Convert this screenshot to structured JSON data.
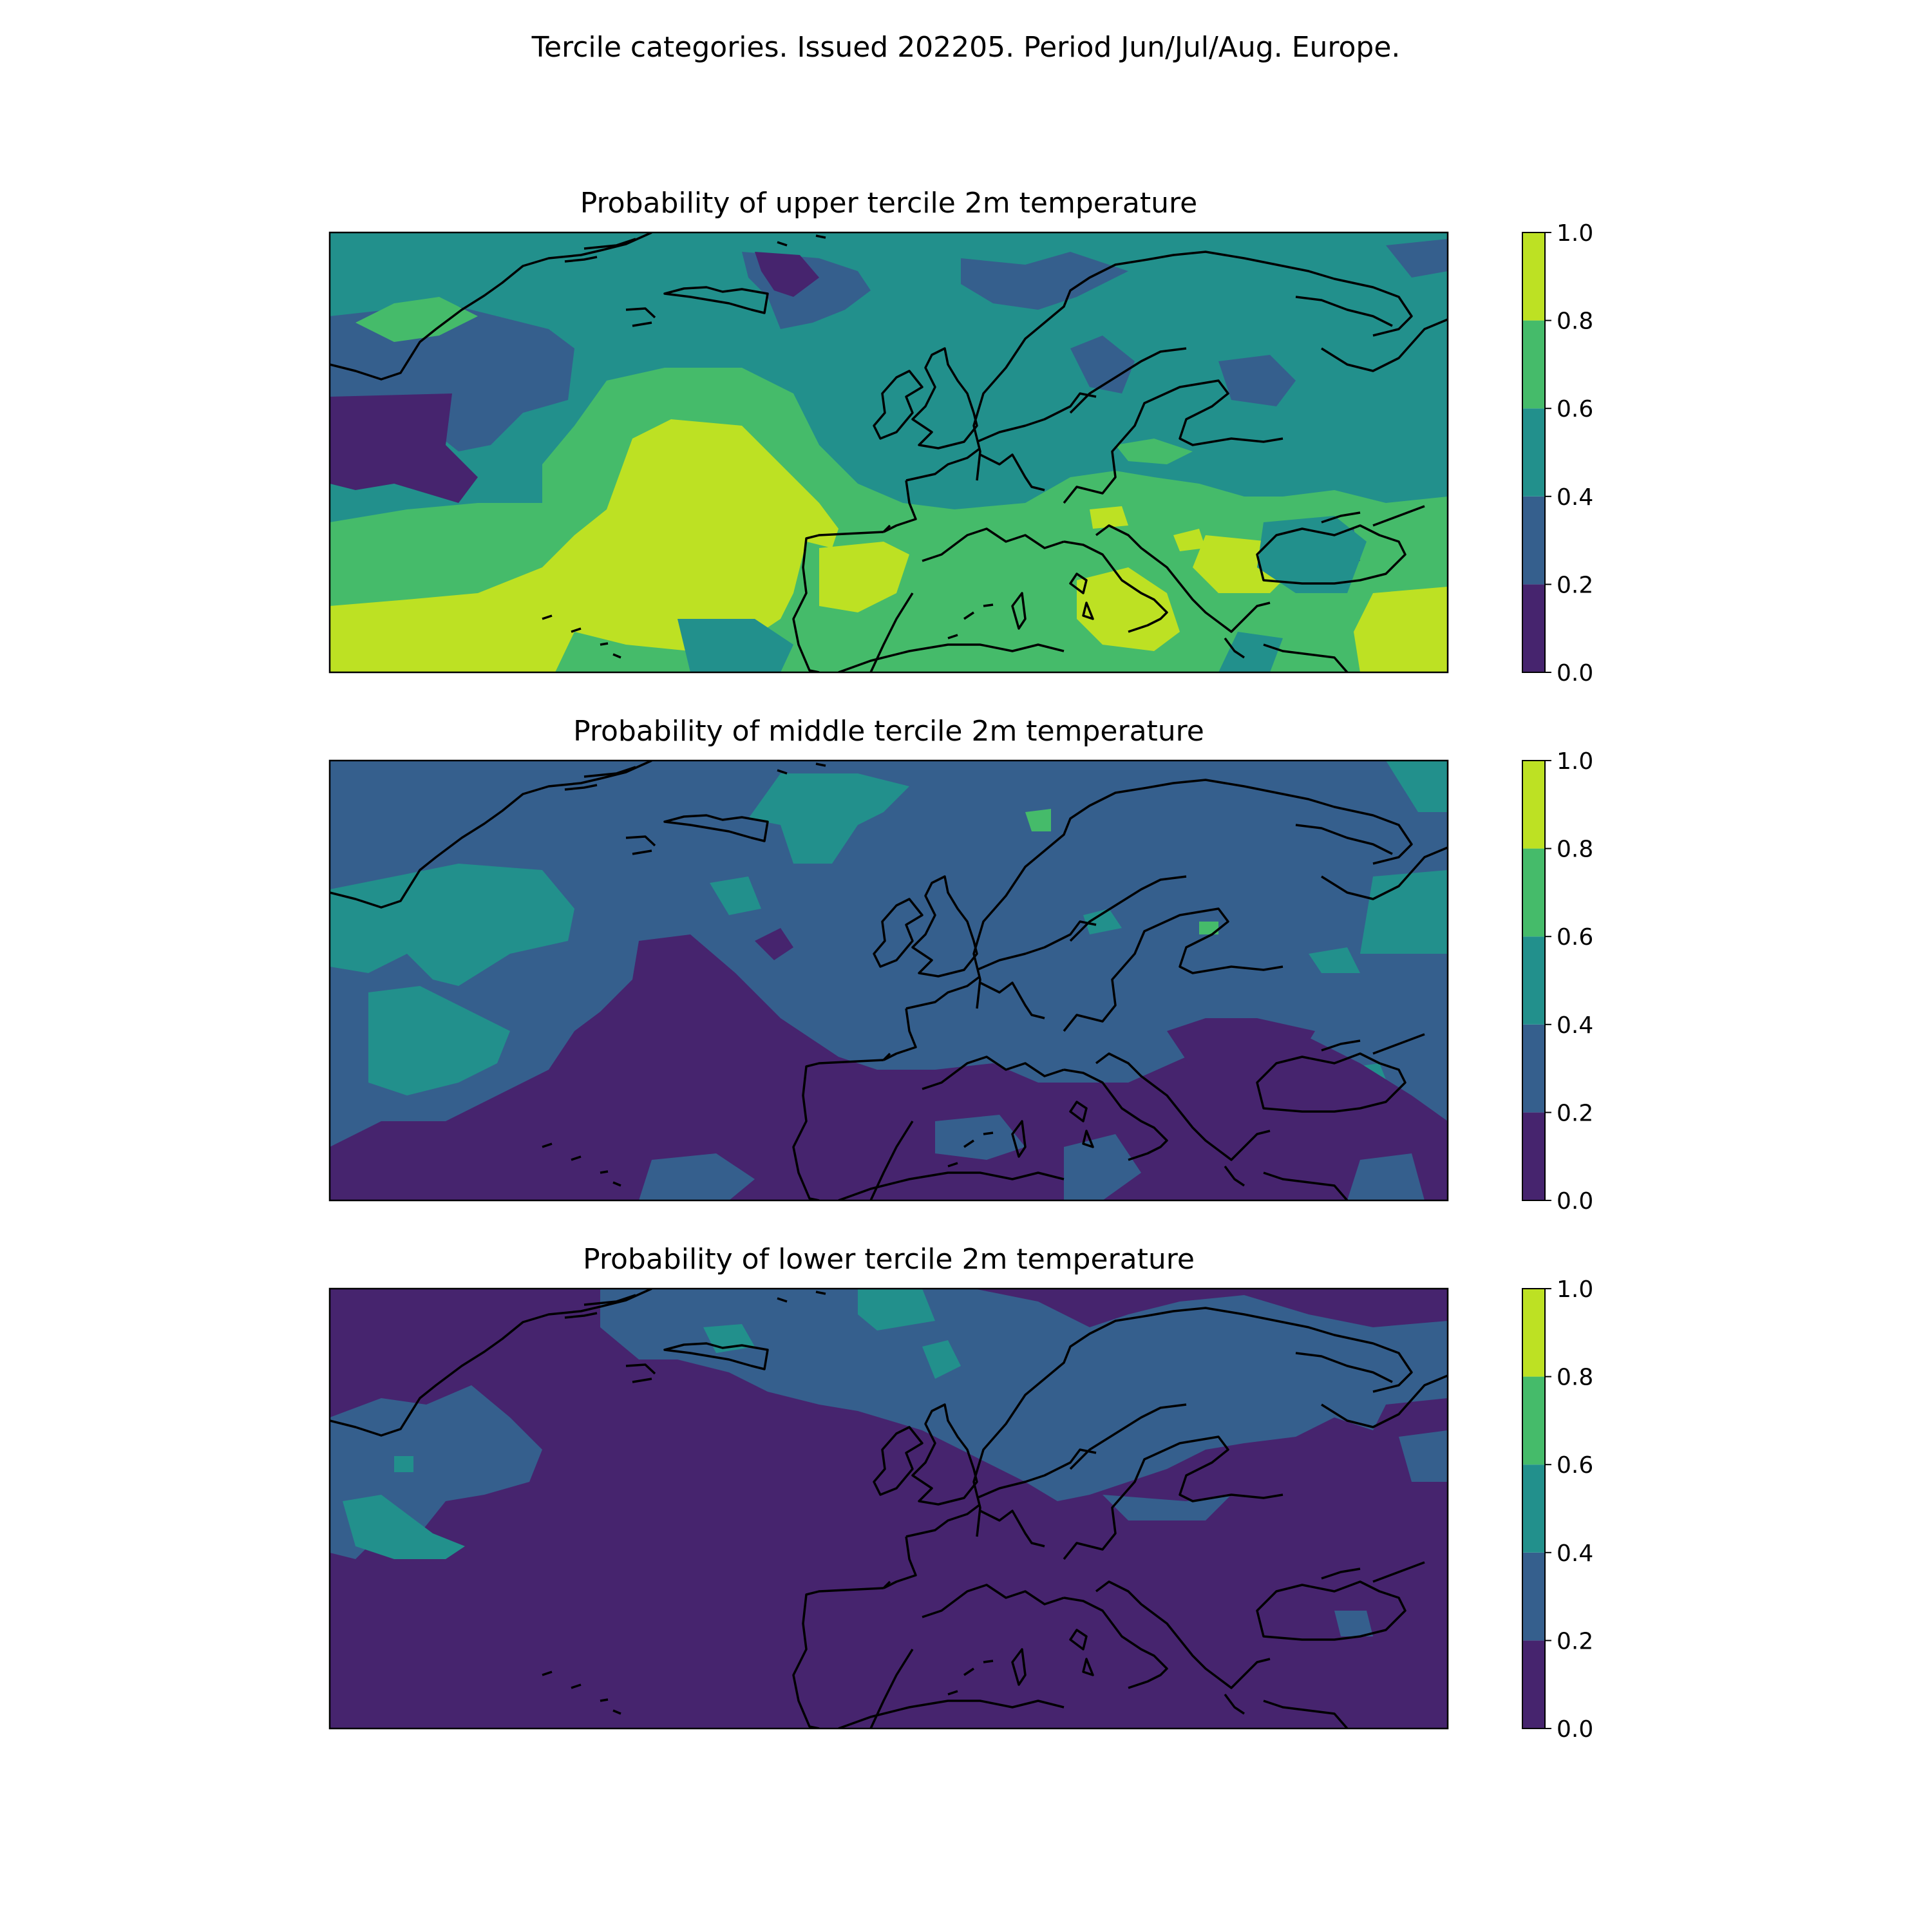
{
  "figure": {
    "suptitle": "Tercile categories. Issued 202205. Period Jun/Jul/Aug. Europe."
  },
  "colorbar": {
    "levels": [
      0.0,
      0.2,
      0.4,
      0.6,
      0.8,
      1.0
    ],
    "tick_labels": [
      "0.0",
      "0.2",
      "0.4",
      "0.6",
      "0.8",
      "1.0"
    ],
    "colors": [
      "#46246e",
      "#355f8d",
      "#22908c",
      "#45bb6a",
      "#bde123"
    ],
    "colormap": "viridis"
  },
  "panels": [
    {
      "id": "upper",
      "title": "Probability of upper tercile 2m temperature",
      "dominant_category": "0.6-0.8 over Mediterranean and central Atlantic; 0.8-1.0 over Iberia/subtropical Atlantic; 0.0-0.2 west of Greenland and east Greenland Sea"
    },
    {
      "id": "middle",
      "title": "Probability of middle tercile 2m temperature",
      "dominant_category": "mostly 0.2-0.4; 0.0-0.2 over central Atlantic, Iberia and Mediterranean"
    },
    {
      "id": "lower",
      "title": "Probability of lower tercile 2m temperature",
      "dominant_category": "mostly 0.0-0.2; 0.2-0.4 over northern Atlantic, Iceland and Scandinavia"
    }
  ]
}
